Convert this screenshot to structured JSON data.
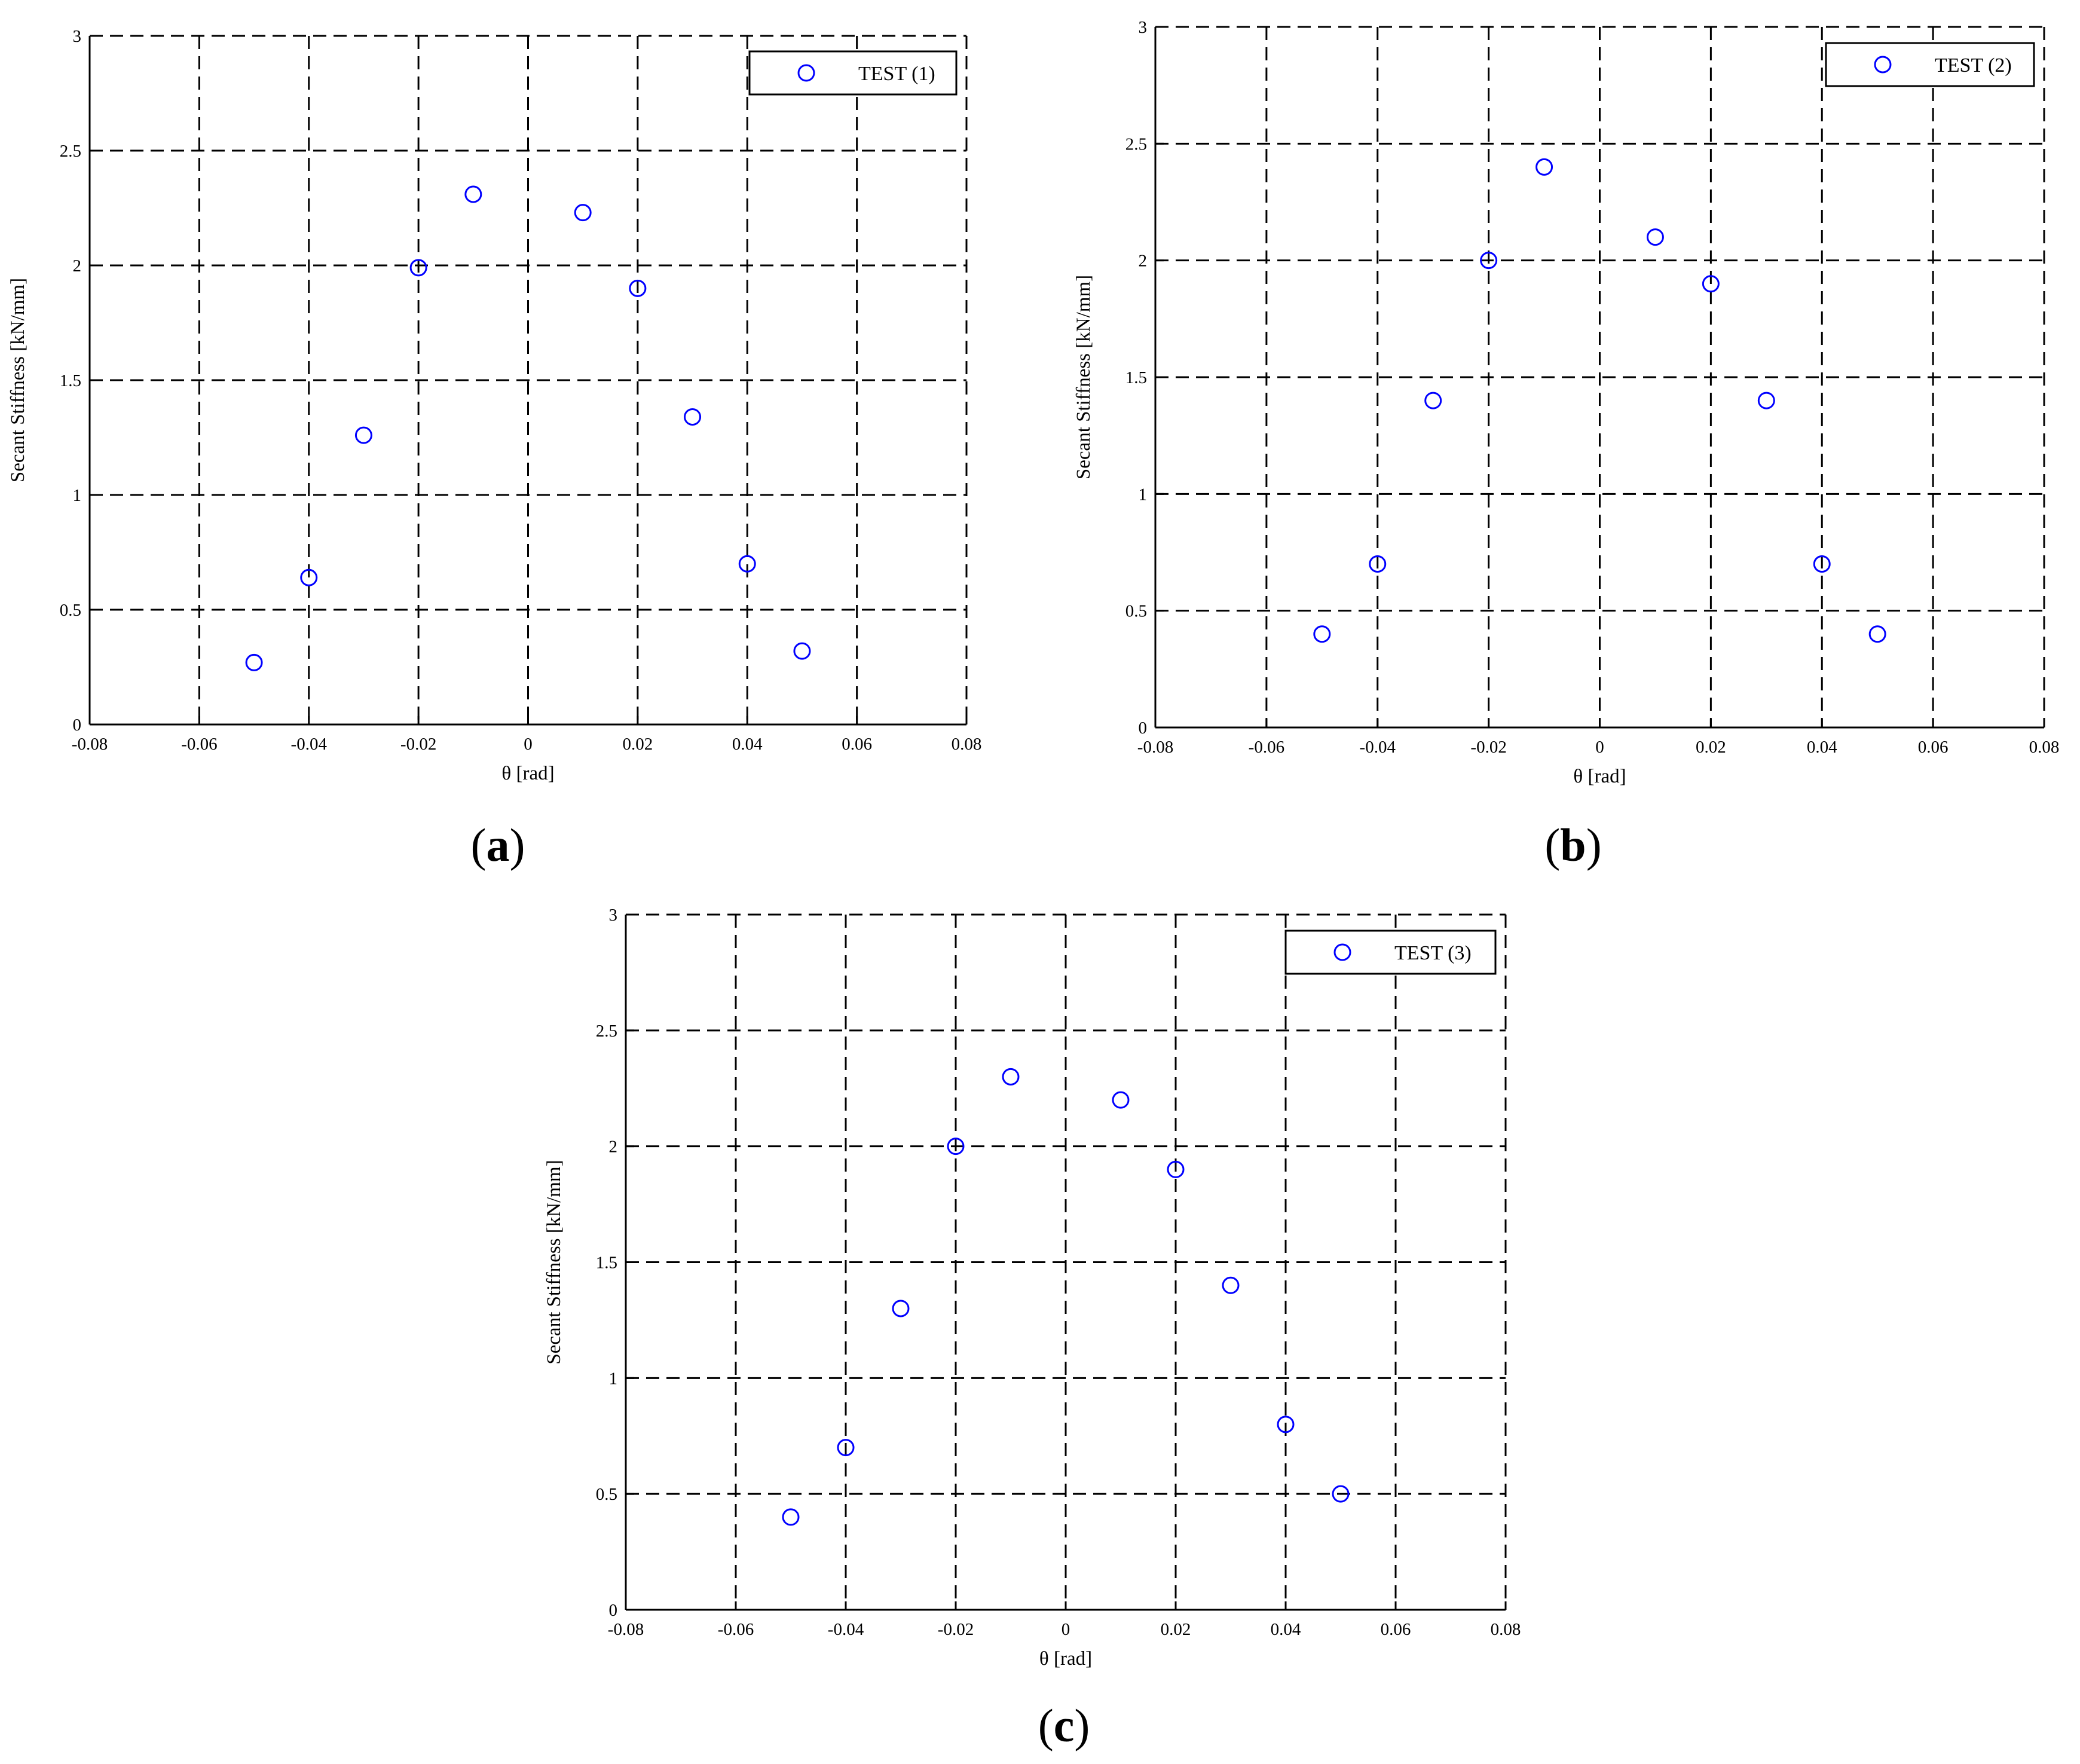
{
  "chart_data": [
    {
      "type": "scatter",
      "caption_letter": "a",
      "xlabel": "θ [rad]",
      "ylabel": "Secant Stiffness [kN/mm]",
      "xlim": [
        -0.08,
        0.08
      ],
      "ylim": [
        0,
        3
      ],
      "xticks": [
        -0.08,
        -0.06,
        -0.04,
        -0.02,
        0,
        0.02,
        0.04,
        0.06,
        0.08
      ],
      "xtick_labels": [
        "-0.08",
        "-0.06",
        "-0.04",
        "-0.02",
        "0",
        "0.02",
        "0.04",
        "0.06",
        "0.08"
      ],
      "yticks": [
        0,
        0.5,
        1,
        1.5,
        2,
        2.5,
        3
      ],
      "ytick_labels": [
        "0",
        "0.5",
        "1",
        "1.5",
        "2",
        "2.5",
        "3"
      ],
      "grid": true,
      "legend_position": "top-right",
      "marker": "open-circle",
      "marker_color": "#0000ff",
      "series": [
        {
          "name": "TEST (1)",
          "x": [
            -0.05,
            -0.04,
            -0.03,
            -0.02,
            -0.01,
            0.01,
            0.02,
            0.03,
            0.04,
            0.05
          ],
          "y": [
            0.27,
            0.64,
            1.26,
            1.99,
            2.31,
            2.23,
            1.9,
            1.34,
            0.7,
            0.32
          ]
        }
      ]
    },
    {
      "type": "scatter",
      "caption_letter": "b",
      "xlabel": "θ [rad]",
      "ylabel": "Secant Stiffness [kN/mm]",
      "xlim": [
        -0.08,
        0.08
      ],
      "ylim": [
        0,
        3
      ],
      "xticks": [
        -0.08,
        -0.06,
        -0.04,
        -0.02,
        0,
        0.02,
        0.04,
        0.06,
        0.08
      ],
      "xtick_labels": [
        "-0.08",
        "-0.06",
        "-0.04",
        "-0.02",
        "0",
        "0.02",
        "0.04",
        "0.06",
        "0.08"
      ],
      "yticks": [
        0,
        0.5,
        1,
        1.5,
        2,
        2.5,
        3
      ],
      "ytick_labels": [
        "0",
        "0.5",
        "1",
        "1.5",
        "2",
        "2.5",
        "3"
      ],
      "grid": true,
      "legend_position": "top-right",
      "marker": "open-circle",
      "marker_color": "#0000ff",
      "series": [
        {
          "name": "TEST (2)",
          "x": [
            -0.05,
            -0.04,
            -0.03,
            -0.02,
            -0.01,
            0.01,
            0.02,
            0.03,
            0.04,
            0.05
          ],
          "y": [
            0.4,
            0.7,
            1.4,
            2.0,
            2.4,
            2.1,
            1.9,
            1.4,
            0.7,
            0.4
          ]
        }
      ]
    },
    {
      "type": "scatter",
      "caption_letter": "c",
      "xlabel": "θ [rad]",
      "ylabel": "Secant Stiffness [kN/mm]",
      "xlim": [
        -0.08,
        0.08
      ],
      "ylim": [
        0,
        3
      ],
      "xticks": [
        -0.08,
        -0.06,
        -0.04,
        -0.02,
        0,
        0.02,
        0.04,
        0.06,
        0.08
      ],
      "xtick_labels": [
        "-0.08",
        "-0.06",
        "-0.04",
        "-0.02",
        "0",
        "0.02",
        "0.04",
        "0.06",
        "0.08"
      ],
      "yticks": [
        0,
        0.5,
        1,
        1.5,
        2,
        2.5,
        3
      ],
      "ytick_labels": [
        "0",
        "0.5",
        "1",
        "1.5",
        "2",
        "2.5",
        "3"
      ],
      "grid": true,
      "legend_position": "top-right",
      "marker": "open-circle",
      "marker_color": "#0000ff",
      "series": [
        {
          "name": "TEST (3)",
          "x": [
            -0.05,
            -0.04,
            -0.03,
            -0.02,
            -0.01,
            0.01,
            0.02,
            0.03,
            0.04,
            0.05
          ],
          "y": [
            0.4,
            0.7,
            1.3,
            2.0,
            2.3,
            2.2,
            1.9,
            1.4,
            0.8,
            0.5
          ]
        }
      ]
    }
  ]
}
